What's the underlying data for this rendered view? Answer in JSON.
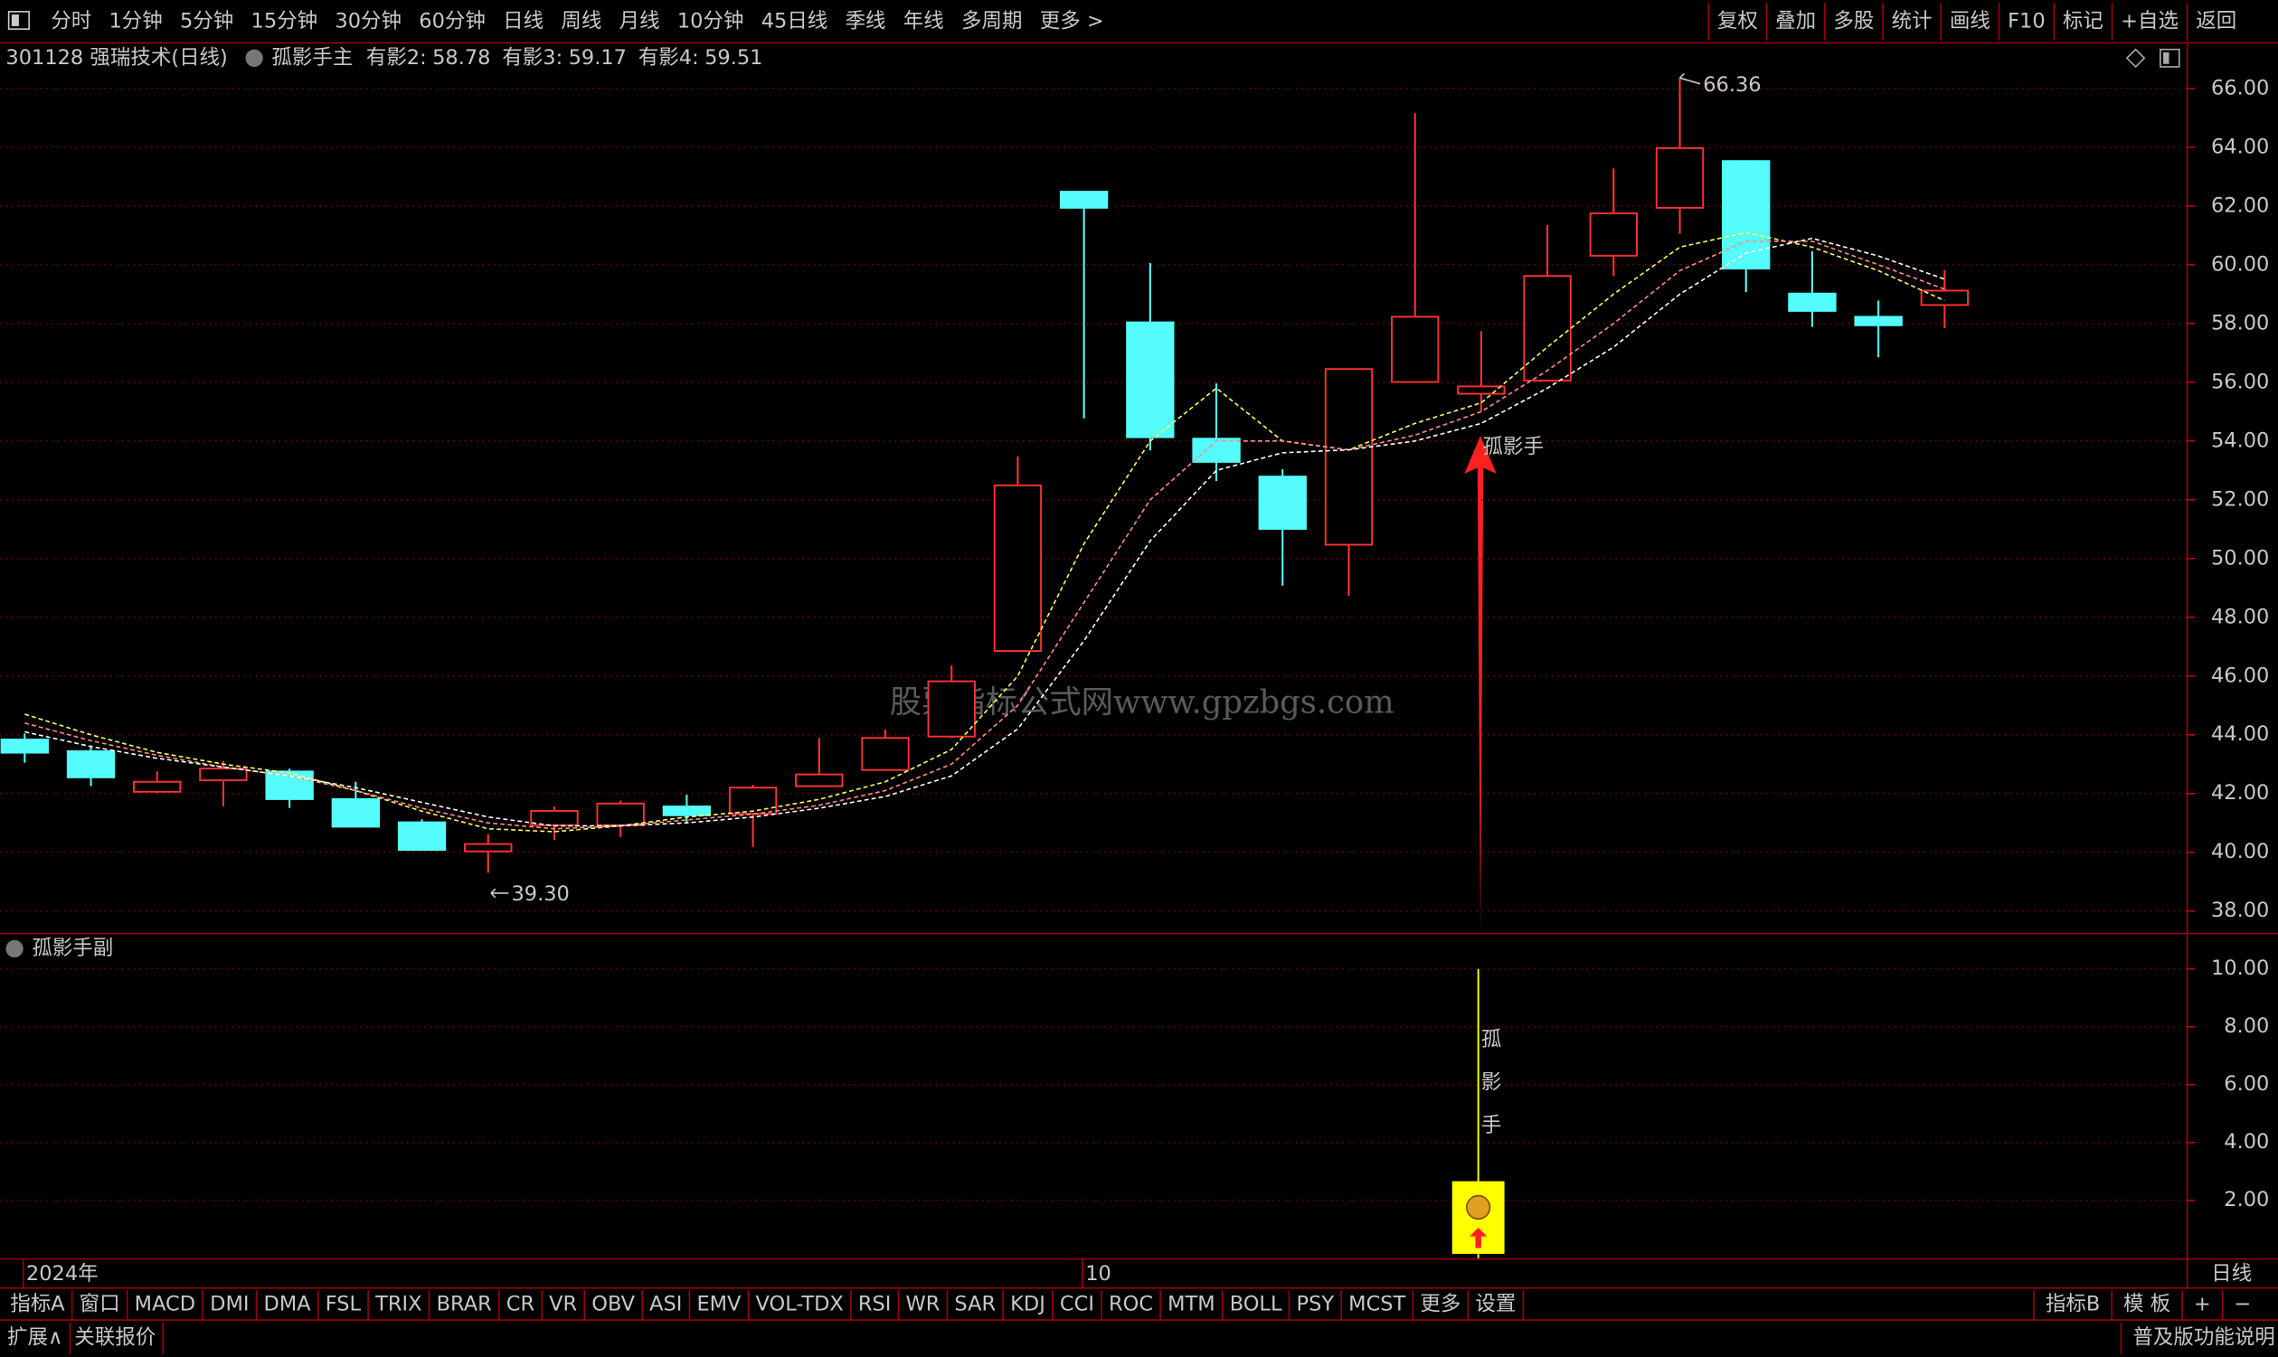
{
  "toolbar": {
    "periods": [
      "分时",
      "1分钟",
      "5分钟",
      "15分钟",
      "30分钟",
      "60分钟",
      "日线",
      "周线",
      "月线",
      "10分钟",
      "45日线",
      "季线",
      "年线",
      "多周期",
      "更多 >"
    ],
    "active_index": 6,
    "tools": [
      "复权",
      "叠加",
      "多股",
      "统计",
      "画线",
      "F10",
      "标记",
      "+自选",
      "返回"
    ]
  },
  "header": {
    "stock": "301128 强瑞技术(日线)",
    "indicator": "孤影手主"
  },
  "watermark": "股票指标公式网www.gpzbgs.com",
  "chart_data": [
    {
      "type": "candlestick",
      "categories": [
        "2024年",
        null,
        null,
        null,
        null,
        null,
        null,
        null,
        null,
        null,
        null,
        null,
        null,
        null,
        null,
        null,
        "10",
        null,
        null,
        null,
        null,
        null,
        null,
        null,
        null,
        null,
        null,
        null,
        null,
        null
      ],
      "open": [
        43.84,
        43.44,
        42.06,
        42.45,
        42.75,
        41.81,
        41.02,
        40.03,
        40.92,
        40.92,
        41.56,
        41.31,
        42.25,
        42.8,
        43.94,
        46.85,
        62.49,
        58.04,
        54.08,
        52.79,
        50.47,
        56.01,
        55.61,
        56.06,
        60.31,
        61.94,
        63.53,
        59.02,
        58.23,
        58.63
      ],
      "high": [
        44.04,
        43.64,
        42.75,
        43.1,
        42.85,
        42.4,
        41.12,
        40.62,
        41.56,
        41.76,
        41.96,
        42.3,
        43.89,
        44.18,
        46.36,
        53.48,
        62.49,
        60.06,
        55.96,
        53.04,
        56.45,
        65.16,
        57.74,
        61.35,
        63.28,
        66.36,
        63.53,
        60.46,
        58.78,
        59.82
      ],
      "low": [
        43.05,
        42.25,
        42.01,
        41.56,
        41.51,
        40.87,
        40.08,
        39.3,
        40.42,
        40.52,
        41.02,
        40.18,
        42.25,
        42.8,
        43.89,
        46.85,
        54.77,
        53.68,
        52.64,
        49.08,
        48.73,
        56.01,
        55.02,
        56.06,
        59.62,
        61.05,
        59.07,
        57.89,
        56.85,
        57.84
      ],
      "close": [
        43.39,
        42.55,
        42.4,
        42.85,
        41.81,
        40.87,
        40.08,
        40.28,
        41.41,
        41.66,
        41.26,
        42.2,
        42.65,
        43.89,
        45.82,
        52.49,
        61.94,
        54.13,
        53.29,
        51.01,
        56.45,
        58.23,
        55.86,
        59.62,
        61.75,
        63.97,
        59.87,
        58.43,
        57.94,
        59.12
      ],
      "up_color": "#ff3232",
      "down_color": "#54fcfc",
      "series": [
        {
          "name": "有影2:",
          "color": "#ffff54",
          "values": [
            44.7,
            44.0,
            43.4,
            43.0,
            42.7,
            42.1,
            41.4,
            40.8,
            40.7,
            40.9,
            41.2,
            41.4,
            41.8,
            42.4,
            43.5,
            46.0,
            50.5,
            54.0,
            55.8,
            54.0,
            53.7,
            54.6,
            55.3,
            57.2,
            59.0,
            60.6,
            61.1,
            60.6,
            59.8,
            58.78
          ]
        },
        {
          "name": "有影3:",
          "color": "#ff8c8c",
          "values": [
            44.4,
            43.8,
            43.3,
            42.9,
            42.6,
            42.1,
            41.5,
            41.0,
            40.8,
            40.9,
            41.1,
            41.3,
            41.6,
            42.1,
            43.0,
            45.0,
            48.5,
            52.0,
            54.0,
            54.0,
            53.7,
            54.2,
            55.0,
            56.4,
            58.0,
            59.8,
            60.8,
            60.8,
            60.0,
            59.17
          ]
        },
        {
          "name": "有影4:",
          "color": "#ffffff",
          "values": [
            44.1,
            43.6,
            43.2,
            42.9,
            42.6,
            42.2,
            41.7,
            41.2,
            40.9,
            40.9,
            41.0,
            41.2,
            41.5,
            41.9,
            42.6,
            44.2,
            47.2,
            50.6,
            53.0,
            53.6,
            53.7,
            54.0,
            54.6,
            55.8,
            57.2,
            59.0,
            60.4,
            60.9,
            60.3,
            59.51
          ]
        }
      ],
      "high_label": "66.36",
      "low_label": "39.30",
      "signal_label": "孤影手",
      "ylim": [
        37.26,
        66.64
      ],
      "yticks": [
        {
          "value": 38,
          "label": "38.00"
        },
        {
          "value": 40,
          "label": "40.00"
        },
        {
          "value": 42,
          "label": "42.00"
        },
        {
          "value": 44,
          "label": "44.00"
        },
        {
          "value": 46,
          "label": "46.00"
        },
        {
          "value": 48,
          "label": "48.00"
        },
        {
          "value": 50,
          "label": "50.00"
        },
        {
          "value": 52,
          "label": "52.00"
        },
        {
          "value": 54,
          "label": "54.00"
        },
        {
          "value": 56,
          "label": "56.00"
        },
        {
          "value": 58,
          "label": "58.00"
        },
        {
          "value": 60,
          "label": "60.00"
        },
        {
          "value": 62,
          "label": "62.00"
        },
        {
          "value": 64,
          "label": "64.00"
        },
        {
          "value": 66,
          "label": "66.00"
        }
      ],
      "grid": true
    },
    {
      "type": "signal",
      "title": "孤影手副",
      "values": [
        null,
        null,
        null,
        null,
        null,
        null,
        null,
        null,
        null,
        null,
        null,
        null,
        null,
        null,
        null,
        null,
        null,
        null,
        null,
        null,
        null,
        null,
        10,
        null,
        null,
        null,
        null,
        null,
        null,
        null
      ],
      "color": "#ffff00",
      "vertical_text": [
        {
          "text": "孤",
          "color": "#ffff54"
        },
        {
          "text": "影",
          "color": "#ff54ff"
        },
        {
          "text": "手",
          "color": "#54ff54"
        }
      ],
      "ylim": [
        0,
        11.2
      ],
      "yticks": [
        {
          "value": 2,
          "label": "2.00"
        },
        {
          "value": 4,
          "label": "4.00"
        },
        {
          "value": 6,
          "label": "6.00"
        },
        {
          "value": 8,
          "label": "8.00"
        },
        {
          "value": 10,
          "label": "10.00"
        }
      ],
      "grid": true
    }
  ],
  "footer": {
    "period": "日线",
    "tabs": [
      "指标A",
      "窗口",
      "MACD",
      "DMI",
      "DMA",
      "FSL",
      "TRIX",
      "BRAR",
      "CR",
      "VR",
      "OBV",
      "ASI",
      "EMV",
      "VOL-TDX",
      "RSI",
      "WR",
      "SAR",
      "KDJ",
      "CCI",
      "ROC",
      "MTM",
      "BOLL",
      "PSY",
      "MCST",
      "更多",
      "设置"
    ],
    "active_index": 25,
    "right_tabs": [
      "指标B",
      "模 板",
      "+",
      "−"
    ],
    "status_left": [
      "扩展∧",
      "关联报价"
    ],
    "status_right": "普及版功能说明"
  }
}
